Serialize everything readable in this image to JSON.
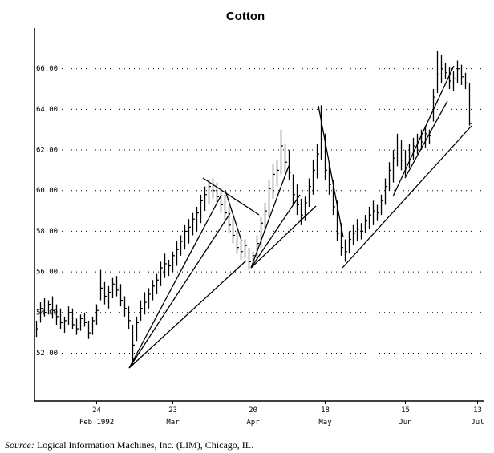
{
  "chart_data": {
    "type": "hlc",
    "title": "Cotton",
    "categories": [
      null,
      null,
      null,
      null,
      null,
      null,
      null,
      null,
      null,
      null,
      null,
      null,
      null,
      null,
      null,
      "24",
      null,
      null,
      null,
      null,
      null,
      null,
      null,
      null,
      null,
      null,
      null,
      null,
      null,
      null,
      null,
      null,
      null,
      null,
      "23",
      null,
      null,
      null,
      null,
      null,
      null,
      null,
      null,
      null,
      null,
      null,
      null,
      null,
      null,
      null,
      null,
      null,
      null,
      null,
      "20",
      null,
      null,
      null,
      null,
      null,
      null,
      null,
      null,
      null,
      null,
      null,
      null,
      null,
      null,
      null,
      null,
      null,
      "18",
      null,
      null,
      null,
      null,
      null,
      null,
      null,
      null,
      null,
      null,
      null,
      null,
      null,
      null,
      null,
      null,
      null,
      null,
      null,
      "15",
      null,
      null,
      null,
      null,
      null,
      null,
      null,
      null,
      null,
      null,
      null,
      null,
      null,
      null,
      null,
      null,
      null,
      "13",
      null
    ],
    "category_months": [
      null,
      null,
      null,
      null,
      null,
      null,
      null,
      null,
      null,
      null,
      null,
      null,
      null,
      null,
      null,
      "Feb 1992",
      null,
      null,
      null,
      null,
      null,
      null,
      null,
      null,
      null,
      null,
      null,
      null,
      null,
      null,
      null,
      null,
      null,
      null,
      "Mar",
      null,
      null,
      null,
      null,
      null,
      null,
      null,
      null,
      null,
      null,
      null,
      null,
      null,
      null,
      null,
      null,
      null,
      null,
      null,
      "Apr",
      null,
      null,
      null,
      null,
      null,
      null,
      null,
      null,
      null,
      null,
      null,
      null,
      null,
      null,
      null,
      null,
      null,
      "May",
      null,
      null,
      null,
      null,
      null,
      null,
      null,
      null,
      null,
      null,
      null,
      null,
      null,
      null,
      null,
      null,
      null,
      null,
      null,
      "Jun",
      null,
      null,
      null,
      null,
      null,
      null,
      null,
      null,
      null,
      null,
      null,
      null,
      null,
      null,
      null,
      null,
      null,
      "Jul",
      null
    ],
    "highs": [
      53.6,
      54.5,
      54.7,
      54.6,
      54.8,
      54.4,
      54.2,
      53.8,
      54.3,
      54.2,
      53.7,
      53.9,
      54.0,
      53.6,
      53.8,
      54.4,
      56.1,
      55.5,
      55.3,
      55.7,
      55.8,
      55.4,
      54.8,
      54.3,
      53.4,
      53.8,
      54.6,
      55.0,
      55.2,
      55.6,
      55.9,
      56.5,
      56.9,
      56.6,
      57.0,
      57.5,
      57.8,
      58.3,
      58.6,
      58.9,
      59.2,
      59.8,
      60.2,
      60.5,
      60.6,
      60.4,
      60.0,
      59.8,
      59.2,
      58.6,
      58.0,
      57.5,
      57.6,
      57.2,
      57.0,
      57.8,
      58.7,
      59.4,
      60.5,
      61.3,
      61.5,
      63.0,
      62.3,
      62.0,
      60.8,
      60.3,
      59.6,
      59.7,
      60.6,
      61.5,
      62.3,
      64.2,
      62.8,
      61.4,
      60.5,
      59.5,
      58.4,
      57.6,
      58.0,
      58.3,
      58.6,
      58.4,
      58.8,
      59.2,
      59.5,
      59.3,
      59.8,
      60.6,
      61.4,
      62.0,
      62.8,
      62.5,
      62.0,
      62.3,
      62.6,
      62.8,
      63.0,
      63.2,
      63.0,
      65.0,
      66.9,
      66.7,
      66.3,
      66.1,
      65.9,
      66.4,
      66.2,
      65.8,
      65.3,
      null,
      null,
      null
    ],
    "lows": [
      52.8,
      53.5,
      53.8,
      53.9,
      53.7,
      53.4,
      53.2,
      53.0,
      53.4,
      53.2,
      52.9,
      53.1,
      53.3,
      52.7,
      52.9,
      53.4,
      54.6,
      54.4,
      54.2,
      54.7,
      54.8,
      54.3,
      53.8,
      53.2,
      51.4,
      52.6,
      53.6,
      53.9,
      54.2,
      54.6,
      54.9,
      55.3,
      55.7,
      55.8,
      56.0,
      56.3,
      56.8,
      57.1,
      57.4,
      57.8,
      58.0,
      58.4,
      59.0,
      59.3,
      59.6,
      59.4,
      58.9,
      58.5,
      57.9,
      57.4,
      56.9,
      56.6,
      56.7,
      56.1,
      56.2,
      56.6,
      57.2,
      58.0,
      58.7,
      59.6,
      60.2,
      60.8,
      60.9,
      60.5,
      59.3,
      58.8,
      58.3,
      58.5,
      59.2,
      59.8,
      60.6,
      61.5,
      60.5,
      59.8,
      58.8,
      57.5,
      56.8,
      56.5,
      56.9,
      57.3,
      57.5,
      57.6,
      57.9,
      58.1,
      58.3,
      58.5,
      58.8,
      59.3,
      60.0,
      60.4,
      61.2,
      61.0,
      60.7,
      61.1,
      61.5,
      61.8,
      62.0,
      62.1,
      62.3,
      63.4,
      64.8,
      65.3,
      65.5,
      65.0,
      64.9,
      65.3,
      65.2,
      65.0,
      63.2,
      null,
      null,
      null
    ],
    "closes": [
      53.2,
      54.2,
      54.0,
      54.4,
      54.1,
      53.8,
      53.5,
      53.6,
      54.0,
      53.4,
      53.2,
      53.7,
      53.5,
      53.0,
      53.6,
      54.1,
      55.2,
      54.8,
      55.0,
      55.4,
      55.1,
      54.6,
      54.2,
      53.6,
      52.4,
      53.5,
      54.2,
      54.5,
      54.9,
      55.3,
      55.6,
      56.2,
      56.4,
      56.3,
      56.8,
      57.1,
      57.5,
      58.0,
      58.2,
      58.6,
      58.9,
      59.5,
      59.8,
      60.2,
      60.0,
      59.7,
      59.3,
      58.9,
      58.3,
      57.8,
      57.2,
      57.0,
      57.3,
      56.5,
      56.8,
      57.4,
      58.4,
      59.0,
      60.1,
      60.8,
      61.0,
      62.2,
      61.4,
      60.9,
      59.8,
      59.3,
      58.8,
      59.4,
      60.2,
      61.0,
      61.8,
      62.5,
      61.0,
      60.3,
      59.2,
      57.9,
      57.2,
      57.0,
      57.6,
      57.9,
      58.1,
      58.0,
      58.5,
      58.8,
      59.0,
      58.9,
      59.5,
      60.2,
      61.0,
      61.6,
      62.1,
      61.5,
      61.3,
      61.9,
      62.2,
      62.5,
      62.4,
      62.8,
      62.7,
      64.6,
      65.7,
      66.0,
      65.8,
      65.4,
      65.5,
      66.0,
      65.6,
      65.3,
      63.3,
      null,
      null,
      null
    ],
    "color": "#000000",
    "ylim": [
      49.65,
      68.0
    ],
    "yticks": [
      {
        "value": 52,
        "label": "52.00"
      },
      {
        "value": 54,
        "label": "54.00"
      },
      {
        "value": 56,
        "label": "56.00"
      },
      {
        "value": 58,
        "label": "58.00"
      },
      {
        "value": 60,
        "label": "60.00"
      },
      {
        "value": 62,
        "label": "62.00"
      },
      {
        "value": 64,
        "label": "64.00"
      },
      {
        "value": 66,
        "label": "66.00"
      }
    ],
    "grid": true,
    "source_label": "Source:",
    "source_text": "Logical Information Machines, Inc. (LIM), Chicago, IL."
  }
}
